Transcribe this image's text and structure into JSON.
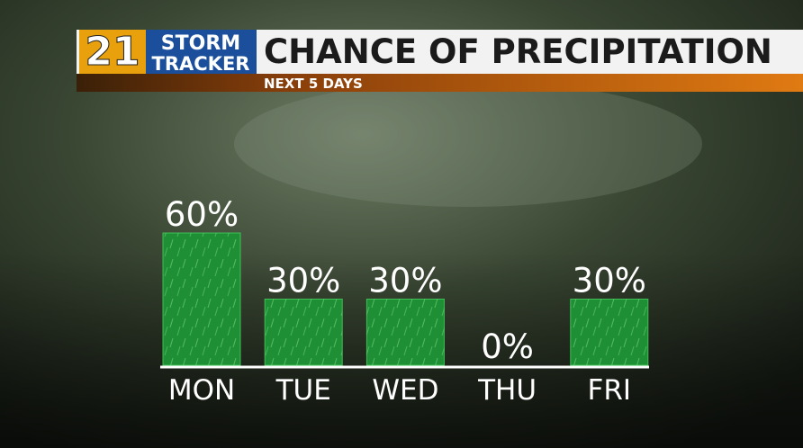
{
  "logo": {
    "number": "21",
    "line1": "STORM",
    "line2": "TRACKER"
  },
  "chart_data": {
    "type": "bar",
    "title": "CHANCE OF PRECIPITATION",
    "subtitle": "NEXT 5 DAYS",
    "categories": [
      "MON",
      "TUE",
      "WED",
      "THU",
      "FRI"
    ],
    "values": [
      60,
      30,
      30,
      0,
      30
    ],
    "value_labels": [
      "60%",
      "30%",
      "30%",
      "0%",
      "30%"
    ],
    "color": "#1f8f35"
  }
}
